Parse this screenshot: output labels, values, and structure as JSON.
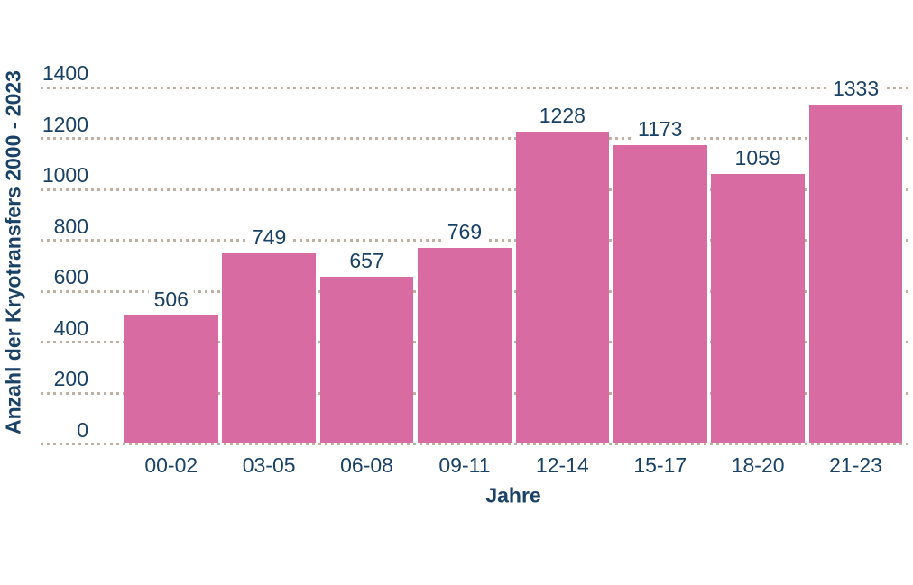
{
  "chart_data": {
    "type": "bar",
    "title": "",
    "xlabel": "Jahre",
    "ylabel": "Anzahl der Kryotransfers 2000 - 2023",
    "categories": [
      "00-02",
      "03-05",
      "06-08",
      "09-11",
      "12-14",
      "15-17",
      "18-20",
      "21-23"
    ],
    "values": [
      506,
      749,
      657,
      769,
      1228,
      1173,
      1059,
      1333
    ],
    "bar_value_labels": [
      "506",
      "749",
      "657",
      "769",
      "1228",
      "1173",
      "1059",
      "1333"
    ],
    "ylim": [
      0,
      1400
    ],
    "yticks": [
      0,
      200,
      400,
      600,
      800,
      1000,
      1200,
      1400
    ],
    "grid": "horizontal-dotted",
    "legend": "none",
    "colors": {
      "bar": "#d86ca2",
      "text": "#1a4166",
      "gridline": "#bfb0a1",
      "background": "#ffffff"
    }
  }
}
